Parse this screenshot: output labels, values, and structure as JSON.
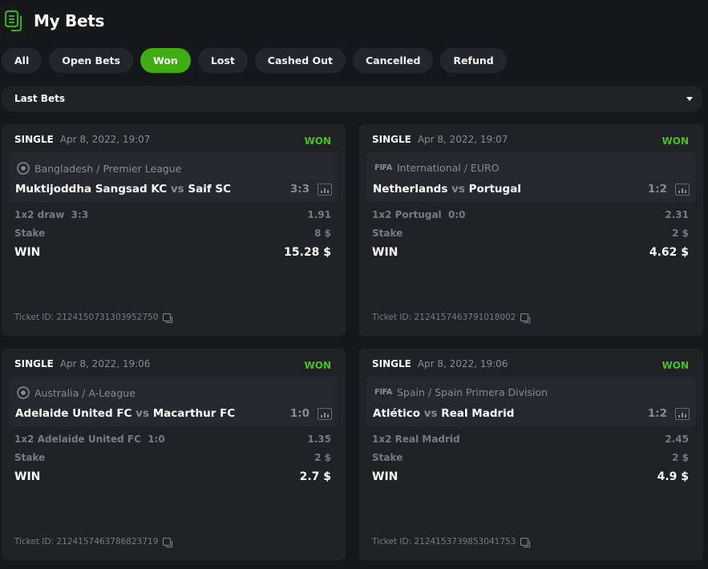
{
  "header": {
    "title": "My Bets",
    "icon": "bets-list-icon",
    "accent": "#3fad10"
  },
  "filters": [
    {
      "label": "All"
    },
    {
      "label": "Open Bets"
    },
    {
      "label": "Won",
      "active": true
    },
    {
      "label": "Lost"
    },
    {
      "label": "Cashed Out"
    },
    {
      "label": "Cancelled"
    },
    {
      "label": "Refund"
    }
  ],
  "dropdown": {
    "selected": "Last Bets"
  },
  "bets": [
    {
      "type": "SINGLE",
      "date": "Apr 8, 2022, 19:07",
      "status": "WON",
      "sport_icon": "soccer-ball-icon",
      "league": "Bangladesh / Premier League",
      "home": "Muktijoddha Sangsad KC",
      "vs": "vs",
      "away": "Saif SC",
      "score": "3:3",
      "selection": "1x2 draw",
      "sel_score": "3:3",
      "odds": "1.91",
      "stake_label": "Stake",
      "stake": "8 $",
      "win_label": "WIN",
      "win": "15.28 $",
      "ticket": "Ticket ID: 2124150731303952750"
    },
    {
      "type": "SINGLE",
      "date": "Apr 8, 2022, 19:07",
      "status": "WON",
      "sport_icon": "fifa-icon",
      "sport_text": "FIFA",
      "league": "International / EURO",
      "home": "Netherlands",
      "vs": "vs",
      "away": "Portugal",
      "score": "1:2",
      "selection": "1x2 Portugal",
      "sel_score": "0:0",
      "odds": "2.31",
      "stake_label": "Stake",
      "stake": "2 $",
      "win_label": "WIN",
      "win": "4.62 $",
      "ticket": "Ticket ID: 2124157463791018002"
    },
    {
      "type": "SINGLE",
      "date": "Apr 8, 2022, 19:06",
      "status": "WON",
      "sport_icon": "soccer-ball-icon",
      "league": "Australia / A-League",
      "home": "Adelaide United FC",
      "vs": "vs",
      "away": "Macarthur FC",
      "score": "1:0",
      "selection": "1x2 Adelaide United FC",
      "sel_score": "1:0",
      "odds": "1.35",
      "stake_label": "Stake",
      "stake": "2 $",
      "win_label": "WIN",
      "win": "2.7 $",
      "ticket": "Ticket ID: 2124157463786823719"
    },
    {
      "type": "SINGLE",
      "date": "Apr 8, 2022, 19:06",
      "status": "WON",
      "sport_icon": "fifa-icon",
      "sport_text": "FIFA",
      "league": "Spain / Spain Primera Division",
      "home": "Atlético",
      "vs": "vs",
      "away": "Real Madrid",
      "score": "1:2",
      "selection": "1x2 Real Madrid",
      "sel_score": "",
      "odds": "2.45",
      "stake_label": "Stake",
      "stake": "2 $",
      "win_label": "WIN",
      "win": "4.9 $",
      "ticket": "Ticket ID: 2124153739853041753"
    }
  ]
}
